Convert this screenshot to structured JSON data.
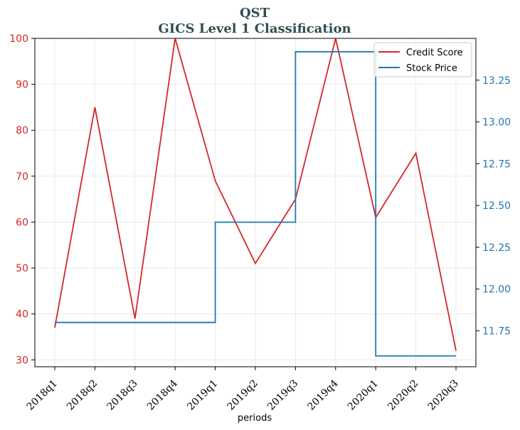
{
  "chart_data": {
    "type": "line",
    "title": "QST",
    "subtitle": "GICS Level 1 Classification",
    "xlabel": "periods",
    "categories": [
      "2018q1",
      "2018q2",
      "2018q3",
      "2018q4",
      "2019q1",
      "2019q2",
      "2019q3",
      "2019q4",
      "2020q1",
      "2020q2",
      "2020q3"
    ],
    "y_left": {
      "ylim": [
        28.5,
        100
      ],
      "ticks": [
        "30",
        "40",
        "50",
        "60",
        "70",
        "80",
        "90",
        "100"
      ],
      "tick_values": [
        30,
        40,
        50,
        60,
        70,
        80,
        90,
        100
      ],
      "color": "#d62728"
    },
    "y_right": {
      "ylim": [
        11.535,
        13.5
      ],
      "ticks": [
        "11.75",
        "12.00",
        "12.25",
        "12.50",
        "12.75",
        "13.00",
        "13.25"
      ],
      "tick_values": [
        11.75,
        12.0,
        12.25,
        12.5,
        12.75,
        13.0,
        13.25
      ],
      "color": "#1f77b4"
    },
    "series": [
      {
        "name": "Credit Score",
        "axis": "left",
        "color": "#d62728",
        "values": [
          37,
          85,
          39,
          100,
          69,
          51,
          65,
          100,
          61,
          75,
          32
        ]
      },
      {
        "name": "Stock Price",
        "axis": "right",
        "color": "#1f77b4",
        "step": "post",
        "values": [
          11.8,
          11.8,
          11.8,
          11.8,
          12.4,
          12.4,
          13.42,
          13.42,
          11.6,
          11.6,
          11.6
        ]
      }
    ],
    "grid": true,
    "legend_position": "top-right"
  }
}
